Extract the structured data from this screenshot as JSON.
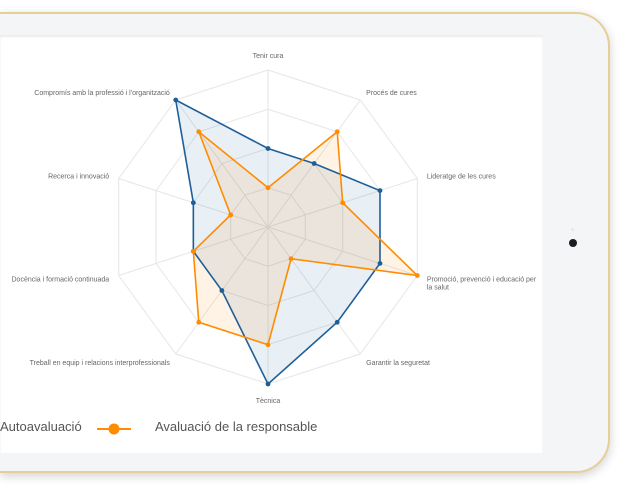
{
  "chart_data": {
    "type": "radar",
    "axes": [
      "Tenir cura",
      "Procés de cures",
      "Lideratge de les cures",
      "Promoció, prevenció i educació per la salut",
      "Garantir la seguretat",
      "Tècnica",
      "Treball en equip i relacions interprofessionals",
      "Docència i formació continuada",
      "Recerca i innovació",
      "Compromís amb la professió i l'organització"
    ],
    "range": [
      0,
      4
    ],
    "grid": true,
    "legend_position": "bottom",
    "series": [
      {
        "name": "Autoavaluació",
        "color": "#1f5f99",
        "values": [
          2,
          2,
          3,
          3,
          3,
          4,
          2,
          2,
          2,
          4
        ]
      },
      {
        "name": "Avaluació de la responsable",
        "color": "#ff8c00",
        "values": [
          1,
          3,
          2,
          4,
          1,
          3,
          3,
          2,
          1,
          3
        ]
      }
    ]
  }
}
